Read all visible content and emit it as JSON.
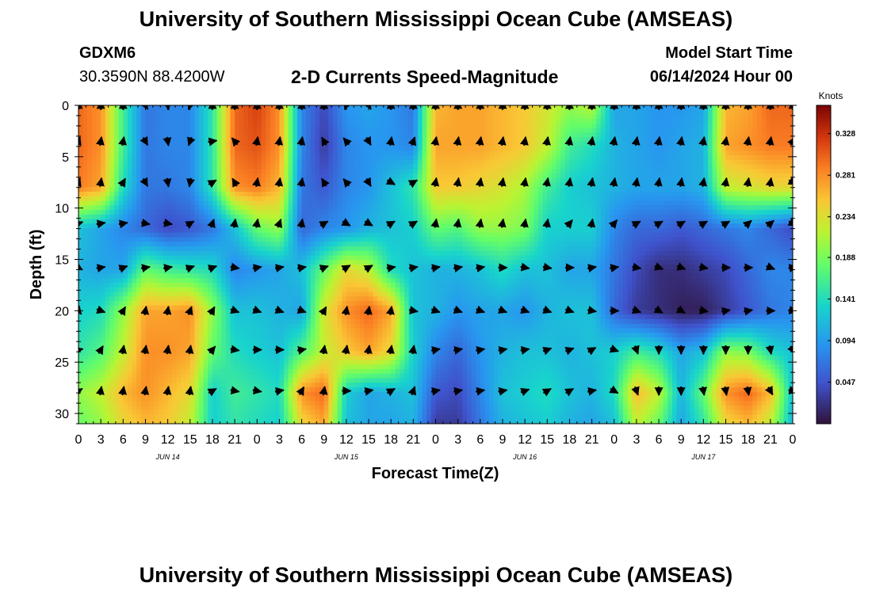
{
  "header": {
    "title": "University of Southern Mississippi Ocean Cube (AMSEAS)",
    "station": "GDXM6",
    "coords": "30.3590N  88.4200W",
    "subtitle": "2-D Currents Speed-Magnitude",
    "model_start_label": "Model Start Time",
    "model_start_value": "06/14/2024 Hour 00"
  },
  "footer": {
    "title": "University of Southern Mississippi Ocean Cube (AMSEAS)"
  },
  "chart_data": {
    "type": "heatmap",
    "title": "2-D Currents Speed-Magnitude",
    "xlabel": "Forecast Time(Z)",
    "ylabel": "Depth (ft)",
    "x_tick_labels": [
      "0",
      "3",
      "6",
      "9",
      "12",
      "15",
      "18",
      "21",
      "0",
      "3",
      "6",
      "9",
      "12",
      "15",
      "18",
      "21",
      "0",
      "3",
      "6",
      "9",
      "12",
      "15",
      "18",
      "21",
      "0",
      "3",
      "6",
      "9",
      "12",
      "15",
      "18",
      "21",
      "0"
    ],
    "x_hours": [
      0,
      3,
      6,
      9,
      12,
      15,
      18,
      21,
      24,
      27,
      30,
      33,
      36,
      39,
      42,
      45,
      48,
      51,
      54,
      57,
      60,
      63,
      66,
      69,
      72,
      75,
      78,
      81,
      84,
      87,
      90,
      93,
      96
    ],
    "day_labels": [
      {
        "label": "JUN 14",
        "hour": 12
      },
      {
        "label": "JUN 15",
        "hour": 36
      },
      {
        "label": "JUN 16",
        "hour": 60
      },
      {
        "label": "JUN 17",
        "hour": 84
      }
    ],
    "y_ticks": [
      0,
      5,
      10,
      15,
      20,
      25,
      30
    ],
    "y_tick_labels": [
      "0",
      "5",
      "10",
      "15",
      "20",
      "25",
      "30"
    ],
    "ylim": [
      0,
      31
    ],
    "xlim": [
      0,
      96
    ],
    "colorbar": {
      "unit": "Knots",
      "min": 0.0,
      "max": 0.36,
      "tick_values": [
        0.047,
        0.094,
        0.141,
        0.188,
        0.234,
        0.281,
        0.328
      ],
      "tick_labels": [
        "0.047",
        "0.094",
        "0.141",
        "0.188",
        "0.234",
        "0.281",
        "0.328"
      ]
    },
    "speed_hours": [
      0,
      3,
      6,
      9,
      12,
      15,
      18,
      21,
      24,
      27,
      30,
      33,
      36,
      39,
      42,
      45,
      48,
      51,
      54,
      57,
      60,
      63,
      66,
      69,
      72,
      75,
      78,
      81,
      84,
      87,
      90,
      93,
      96
    ],
    "speed_depths": [
      0,
      4,
      8,
      12,
      16,
      20,
      24,
      28,
      31
    ],
    "speed": [
      [
        0.3,
        0.28,
        0.16,
        0.07,
        0.08,
        0.08,
        0.15,
        0.3,
        0.32,
        0.28,
        0.08,
        0.04,
        0.09,
        0.1,
        0.09,
        0.07,
        0.26,
        0.27,
        0.27,
        0.26,
        0.25,
        0.23,
        0.2,
        0.22,
        0.1,
        0.1,
        0.09,
        0.09,
        0.1,
        0.26,
        0.27,
        0.3,
        0.3
      ],
      [
        0.3,
        0.28,
        0.16,
        0.07,
        0.08,
        0.08,
        0.15,
        0.3,
        0.31,
        0.28,
        0.08,
        0.03,
        0.08,
        0.09,
        0.09,
        0.08,
        0.27,
        0.27,
        0.27,
        0.26,
        0.25,
        0.22,
        0.16,
        0.14,
        0.11,
        0.1,
        0.09,
        0.1,
        0.11,
        0.27,
        0.28,
        0.29,
        0.29
      ],
      [
        0.29,
        0.27,
        0.14,
        0.07,
        0.07,
        0.08,
        0.15,
        0.28,
        0.29,
        0.26,
        0.07,
        0.05,
        0.08,
        0.09,
        0.12,
        0.15,
        0.25,
        0.25,
        0.24,
        0.23,
        0.21,
        0.16,
        0.13,
        0.12,
        0.11,
        0.1,
        0.1,
        0.1,
        0.11,
        0.22,
        0.23,
        0.24,
        0.24
      ],
      [
        0.12,
        0.1,
        0.08,
        0.06,
        0.04,
        0.05,
        0.07,
        0.12,
        0.18,
        0.2,
        0.06,
        0.08,
        0.09,
        0.11,
        0.12,
        0.13,
        0.18,
        0.17,
        0.2,
        0.2,
        0.19,
        0.13,
        0.13,
        0.13,
        0.08,
        0.06,
        0.06,
        0.05,
        0.06,
        0.07,
        0.08,
        0.06,
        0.04
      ],
      [
        0.11,
        0.1,
        0.1,
        0.18,
        0.16,
        0.15,
        0.14,
        0.08,
        0.09,
        0.1,
        0.12,
        0.18,
        0.24,
        0.22,
        0.14,
        0.12,
        0.11,
        0.11,
        0.12,
        0.14,
        0.12,
        0.12,
        0.1,
        0.1,
        0.07,
        0.04,
        0.02,
        0.02,
        0.03,
        0.04,
        0.06,
        0.08,
        0.08
      ],
      [
        0.13,
        0.14,
        0.2,
        0.27,
        0.27,
        0.28,
        0.2,
        0.12,
        0.12,
        0.11,
        0.1,
        0.23,
        0.28,
        0.3,
        0.27,
        0.12,
        0.11,
        0.09,
        0.1,
        0.1,
        0.09,
        0.11,
        0.12,
        0.12,
        0.06,
        0.03,
        0.02,
        0.01,
        0.01,
        0.03,
        0.05,
        0.07,
        0.08
      ],
      [
        0.15,
        0.17,
        0.22,
        0.28,
        0.28,
        0.27,
        0.18,
        0.14,
        0.13,
        0.12,
        0.17,
        0.22,
        0.25,
        0.27,
        0.24,
        0.13,
        0.08,
        0.06,
        0.09,
        0.11,
        0.12,
        0.12,
        0.11,
        0.12,
        0.13,
        0.16,
        0.14,
        0.1,
        0.12,
        0.2,
        0.19,
        0.14,
        0.12
      ],
      [
        0.2,
        0.22,
        0.26,
        0.28,
        0.26,
        0.24,
        0.13,
        0.16,
        0.15,
        0.14,
        0.28,
        0.3,
        0.13,
        0.1,
        0.11,
        0.12,
        0.05,
        0.04,
        0.08,
        0.12,
        0.13,
        0.14,
        0.12,
        0.11,
        0.14,
        0.26,
        0.22,
        0.11,
        0.18,
        0.28,
        0.3,
        0.26,
        0.12
      ],
      [
        0.18,
        0.2,
        0.24,
        0.26,
        0.25,
        0.22,
        0.13,
        0.15,
        0.14,
        0.13,
        0.24,
        0.27,
        0.12,
        0.1,
        0.1,
        0.11,
        0.03,
        0.03,
        0.07,
        0.11,
        0.12,
        0.13,
        0.11,
        0.1,
        0.12,
        0.22,
        0.18,
        0.1,
        0.15,
        0.24,
        0.26,
        0.22,
        0.11
      ]
    ],
    "arrow_hours": [
      0,
      3,
      6,
      9,
      12,
      15,
      18,
      21,
      24,
      27,
      30,
      33,
      36,
      39,
      42,
      45,
      48,
      51,
      54,
      57,
      60,
      63,
      66,
      69,
      72,
      75,
      78,
      81,
      84,
      87,
      90,
      93,
      96
    ],
    "arrow_depths": [
      0,
      3.5,
      7.5,
      11.5,
      15.8,
      20,
      23.8,
      27.8
    ],
    "arrow_angles_deg": [
      [
        0,
        0,
        0,
        150,
        170,
        200,
        0,
        0,
        0,
        0,
        0,
        0,
        200,
        150,
        0,
        0,
        0,
        0,
        0,
        0,
        0,
        0,
        0,
        0,
        0,
        0,
        0,
        0,
        0,
        0,
        0,
        0,
        0
      ],
      [
        20,
        10,
        10,
        150,
        170,
        200,
        80,
        320,
        10,
        10,
        10,
        330,
        320,
        150,
        10,
        20,
        10,
        10,
        10,
        10,
        10,
        10,
        10,
        10,
        10,
        10,
        10,
        10,
        10,
        10,
        10,
        10,
        30
      ],
      [
        20,
        10,
        30,
        150,
        170,
        190,
        60,
        330,
        10,
        10,
        10,
        330,
        320,
        150,
        120,
        60,
        10,
        10,
        10,
        10,
        10,
        10,
        10,
        10,
        10,
        10,
        10,
        10,
        10,
        10,
        10,
        10,
        120
      ],
      [
        70,
        80,
        80,
        100,
        100,
        60,
        20,
        10,
        10,
        20,
        10,
        60,
        120,
        120,
        60,
        60,
        10,
        10,
        10,
        10,
        10,
        10,
        40,
        10,
        40,
        60,
        60,
        60,
        60,
        60,
        50,
        50,
        120
      ],
      [
        120,
        80,
        70,
        80,
        80,
        70,
        70,
        100,
        80,
        80,
        80,
        70,
        60,
        60,
        80,
        80,
        80,
        80,
        80,
        90,
        100,
        100,
        90,
        80,
        80,
        100,
        110,
        110,
        100,
        90,
        90,
        110,
        80
      ],
      [
        140,
        110,
        30,
        10,
        10,
        20,
        30,
        110,
        110,
        110,
        110,
        30,
        10,
        10,
        10,
        100,
        110,
        110,
        110,
        110,
        110,
        110,
        110,
        100,
        90,
        110,
        120,
        120,
        100,
        80,
        80,
        90,
        100
      ],
      [
        80,
        30,
        10,
        10,
        10,
        10,
        40,
        100,
        90,
        90,
        80,
        10,
        10,
        10,
        10,
        10,
        80,
        80,
        80,
        80,
        80,
        70,
        70,
        60,
        110,
        160,
        180,
        180,
        180,
        180,
        180,
        170,
        150
      ],
      [
        60,
        10,
        10,
        10,
        10,
        10,
        60,
        100,
        100,
        80,
        30,
        10,
        90,
        80,
        60,
        20,
        80,
        80,
        80,
        80,
        70,
        60,
        60,
        80,
        120,
        160,
        180,
        180,
        170,
        170,
        170,
        150,
        100
      ]
    ]
  }
}
